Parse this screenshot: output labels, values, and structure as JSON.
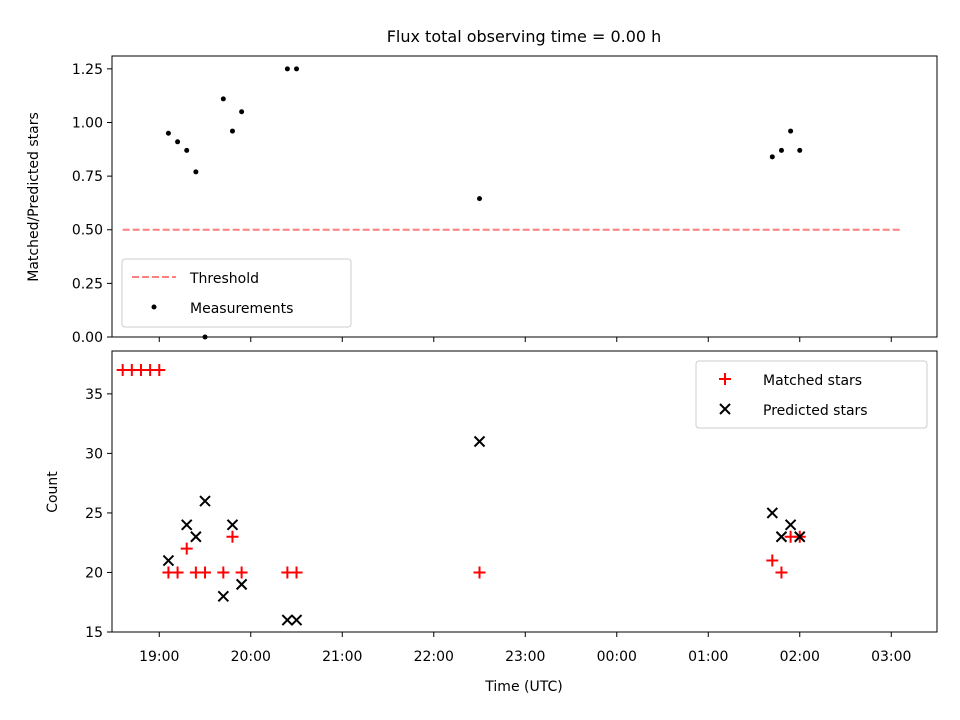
{
  "chart_data": [
    {
      "type": "scatter",
      "title": "Flux total observing time = 0.00 h",
      "xlabel": "",
      "ylabel": "Matched/Predicted stars",
      "xlim": [
        "18:29",
        "03:30"
      ],
      "ylim": [
        0,
        1.31
      ],
      "yticks": [
        0.0,
        0.25,
        0.5,
        0.75,
        1.0,
        1.25
      ],
      "ytick_labels": [
        "0.00",
        "0.25",
        "0.50",
        "0.75",
        "1.00",
        "1.25"
      ],
      "xticks": [
        "19:00",
        "20:00",
        "21:00",
        "22:00",
        "23:00",
        "00:00",
        "01:00",
        "02:00",
        "03:00"
      ],
      "grid": false,
      "legend_position": "lower-left",
      "legend": [
        "Threshold",
        "Measurements"
      ],
      "threshold": {
        "name": "Threshold",
        "y": 0.5,
        "x": [
          "18:36",
          "03:06"
        ],
        "color": "#ff7f7f",
        "style": "dashed"
      },
      "series": [
        {
          "name": "Measurements",
          "color": "#000000",
          "x": [
            "19:06",
            "19:12",
            "19:18",
            "19:24",
            "19:30",
            "19:42",
            "19:48",
            "19:54",
            "20:24",
            "20:30",
            "22:30",
            "01:42",
            "01:48",
            "01:54",
            "02:00"
          ],
          "y": [
            0.95,
            0.91,
            0.87,
            0.77,
            0,
            1.11,
            0.96,
            1.05,
            1.25,
            1.25,
            0.645,
            0.84,
            0.87,
            0.96,
            0.87
          ]
        }
      ]
    },
    {
      "type": "scatter",
      "xlabel": "Time (UTC)",
      "ylabel": "Count",
      "xlim": [
        "18:29",
        "03:30"
      ],
      "ylim": [
        15,
        38.6
      ],
      "yticks": [
        15,
        20,
        25,
        30,
        35
      ],
      "ytick_labels": [
        "15",
        "20",
        "25",
        "30",
        "35"
      ],
      "xticks": [
        "19:00",
        "20:00",
        "21:00",
        "22:00",
        "23:00",
        "00:00",
        "01:00",
        "02:00",
        "03:00"
      ],
      "grid": false,
      "legend_position": "upper-right",
      "legend": [
        "Matched stars",
        "Predicted stars"
      ],
      "series": [
        {
          "name": "Matched stars",
          "color": "#ff0000",
          "marker": "+",
          "x": [
            "18:36",
            "18:42",
            "18:48",
            "18:54",
            "19:00",
            "19:06",
            "19:12",
            "19:18",
            "19:24",
            "19:30",
            "19:42",
            "19:48",
            "19:54",
            "20:24",
            "20:30",
            "22:30",
            "01:42",
            "01:48",
            "01:54",
            "02:00"
          ],
          "y": [
            37,
            37,
            37,
            37,
            37,
            20,
            20,
            22,
            20,
            20,
            20,
            23,
            20,
            20,
            20,
            20,
            21,
            20,
            23,
            23
          ]
        },
        {
          "name": "Predicted stars",
          "color": "#000000",
          "marker": "x",
          "x": [
            "19:06",
            "19:18",
            "19:24",
            "19:30",
            "19:42",
            "19:48",
            "19:54",
            "20:24",
            "20:30",
            "22:30",
            "01:42",
            "01:48",
            "01:54",
            "02:00"
          ],
          "y": [
            21,
            24,
            23,
            26,
            18,
            24,
            19,
            16,
            16,
            31,
            25,
            23,
            24,
            23
          ]
        }
      ]
    }
  ]
}
